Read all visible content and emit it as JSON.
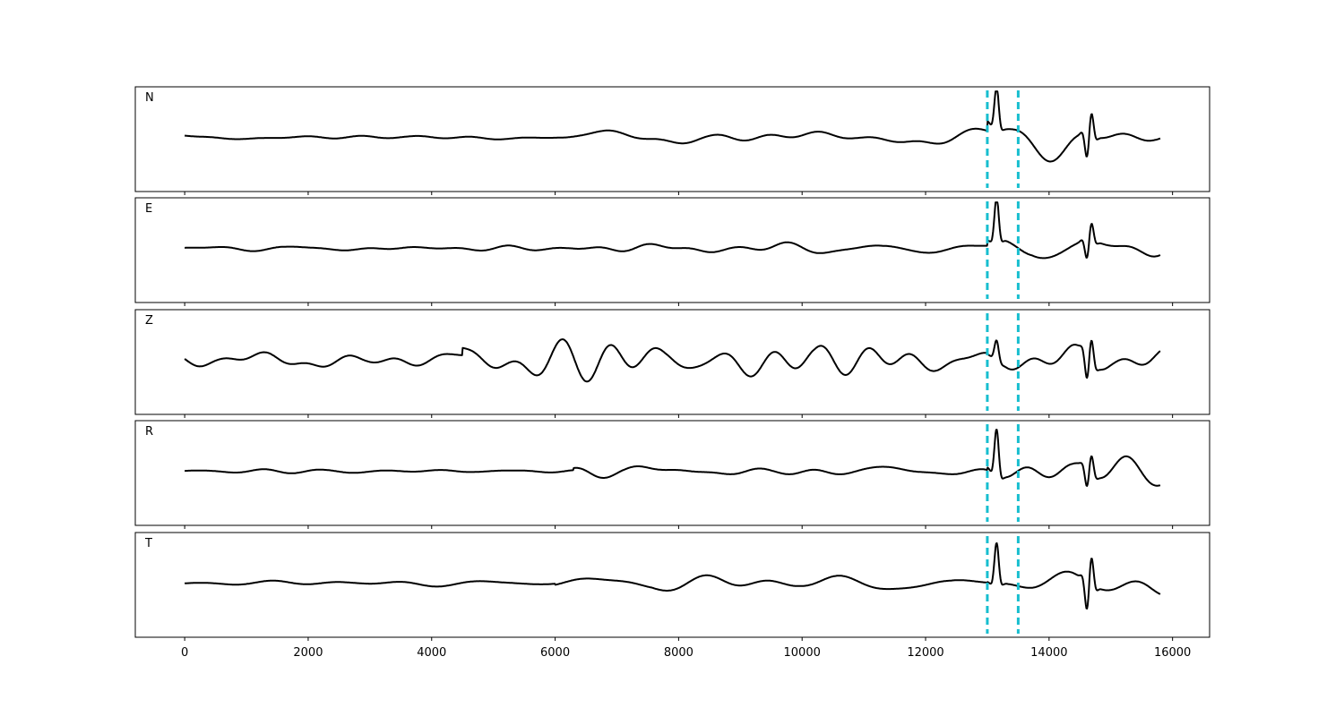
{
  "chart_data": {
    "type": "line",
    "title": "",
    "xlabel": "",
    "ylabel": "",
    "xlim": [
      -800,
      16600
    ],
    "x_ticks": [
      0,
      2000,
      4000,
      6000,
      8000,
      10000,
      12000,
      14000,
      16000
    ],
    "x_tick_labels": [
      "0",
      "2000",
      "4000",
      "6000",
      "8000",
      "10000",
      "12000",
      "14000",
      "16000"
    ],
    "x_range": [
      0,
      15800
    ],
    "grid": false,
    "line_color": "#000000",
    "marker_color": "#17becf",
    "markers_x": [
      13000,
      13500
    ],
    "markers_style": "dashed",
    "panels": [
      {
        "name": "N",
        "amp_before": 0.07,
        "amp_mid": 0.18,
        "onset": 6200,
        "event_amp": 0.85,
        "event_sign": 1,
        "coda_amp": 0.45,
        "seed": 11
      },
      {
        "name": "E",
        "amp_before": 0.05,
        "amp_mid": 0.12,
        "onset": 6300,
        "event_amp": 0.9,
        "event_sign": 1,
        "coda_amp": 0.35,
        "seed": 23
      },
      {
        "name": "Z",
        "amp_before": 0.22,
        "amp_mid": 0.55,
        "onset": 4500,
        "event_amp": 0.4,
        "event_sign": 1,
        "coda_amp": 0.45,
        "seed": 37
      },
      {
        "name": "R",
        "amp_before": 0.04,
        "amp_mid": 0.12,
        "onset": 6300,
        "event_amp": 0.95,
        "event_sign": 1,
        "coda_amp": 0.35,
        "seed": 41
      },
      {
        "name": "T",
        "amp_before": 0.08,
        "amp_mid": 0.22,
        "onset": 6000,
        "event_amp": 0.85,
        "event_sign": 1,
        "coda_amp": 0.55,
        "seed": 53
      }
    ]
  }
}
